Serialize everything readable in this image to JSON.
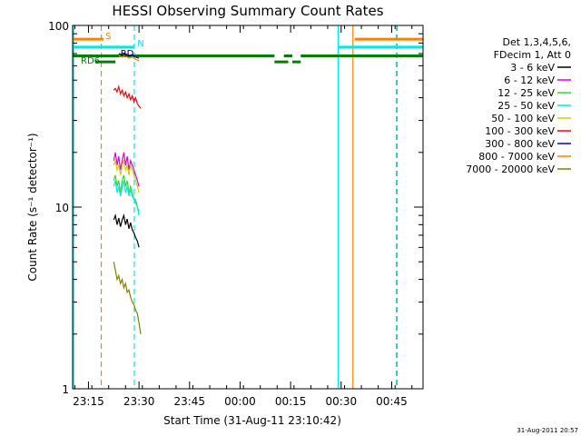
{
  "chart_data": {
    "type": "line",
    "title": "HESSI Observing Summary Count Rates",
    "xlabel": "Start Time (31-Aug-11 23:10:42)",
    "ylabel": "Count Rate (s⁻¹ detector⁻¹)",
    "y_scale": "log",
    "ylim": [
      1,
      100
    ],
    "xlim_minutes": [
      -4.7,
      99.3
    ],
    "x_ticks": [
      {
        "label": "23:15",
        "minute": 0
      },
      {
        "label": "23:30",
        "minute": 15
      },
      {
        "label": "23:45",
        "minute": 30
      },
      {
        "label": "00:00",
        "minute": 45
      },
      {
        "label": "00:15",
        "minute": 60
      },
      {
        "label": "00:30",
        "minute": 75
      },
      {
        "label": "00:45",
        "minute": 90
      }
    ],
    "y_ticks": [
      {
        "label": "1",
        "value": 1
      },
      {
        "label": "10",
        "value": 10
      },
      {
        "label": "100",
        "value": 100
      }
    ],
    "legend": {
      "placement": "right",
      "header": [
        "Det 1,3,4,5,6,",
        "FDecim 1, Att 0"
      ],
      "entries": [
        {
          "label": "3 - 6 keV",
          "color": "#000000"
        },
        {
          "label": "6 - 12 keV",
          "color": "#e000e0"
        },
        {
          "label": "12 - 25 keV",
          "color": "#30e030"
        },
        {
          "label": "25 - 50 keV",
          "color": "#00e8e8"
        },
        {
          "label": "50 - 100 keV",
          "color": "#d0d000"
        },
        {
          "label": "100 - 300 keV",
          "color": "#ff0000"
        },
        {
          "label": "300 - 800 keV",
          "color": "#0000e0"
        },
        {
          "label": "800 - 7000 keV",
          "color": "#ff8000"
        },
        {
          "label": "7000 - 20000 keV",
          "color": "#808000"
        }
      ]
    },
    "markers": [
      {
        "label": "S",
        "color": "#ff8000"
      },
      {
        "label": "N",
        "color": "#00e0ff"
      },
      {
        "label": "RD6",
        "color": "#008000"
      },
      {
        "label": "RD",
        "color": "#000000"
      }
    ],
    "series": [
      {
        "color": "#ff0000",
        "x": [
          7.5,
          8,
          8.5,
          9,
          9.5,
          10,
          10.5,
          11,
          11.5,
          12,
          12.5,
          13,
          13.5,
          14,
          14.5,
          15,
          15.5
        ],
        "y": [
          44,
          45,
          43,
          46,
          42,
          44,
          41,
          43,
          40,
          42,
          39,
          41,
          38,
          40,
          37,
          36,
          35
        ]
      },
      {
        "color": "#e000e0",
        "x": [
          7.5,
          8,
          8.5,
          9,
          9.5,
          10,
          10.5,
          11,
          11.5,
          12,
          12.5,
          13,
          13.5,
          14,
          14.5,
          15
        ],
        "y": [
          18,
          20,
          17,
          19,
          16,
          18,
          20,
          17,
          19,
          16,
          18,
          17,
          16,
          15,
          14,
          13
        ]
      },
      {
        "color": "#d0d000",
        "x": [
          7.5,
          8,
          8.5,
          9,
          9.5,
          10,
          10.5,
          11,
          11.5,
          12,
          12.5,
          13,
          13.5,
          14,
          14.5,
          15
        ],
        "y": [
          17,
          18,
          16,
          17,
          15,
          17,
          18,
          16,
          17,
          15,
          17,
          16,
          15,
          14,
          13,
          12
        ]
      },
      {
        "color": "#30e030",
        "x": [
          7.5,
          8,
          8.5,
          9,
          9.5,
          10,
          10.5,
          11,
          11.5,
          12,
          12.5,
          13,
          13.5,
          14,
          14.5,
          15
        ],
        "y": [
          14,
          15,
          13,
          14,
          12,
          14,
          15,
          13,
          14,
          12,
          13,
          12,
          11,
          11,
          10,
          9.5
        ]
      },
      {
        "color": "#00e8e8",
        "x": [
          7.5,
          8,
          8.5,
          9,
          9.5,
          10,
          10.5,
          11,
          11.5,
          12,
          12.5,
          13,
          13.5,
          14,
          14.5,
          15
        ],
        "y": [
          13,
          14,
          12,
          13,
          11.5,
          13,
          14,
          12,
          13,
          11.5,
          12.5,
          11.5,
          11,
          10.5,
          10,
          9
        ]
      },
      {
        "color": "#000000",
        "x": [
          7.5,
          8,
          8.5,
          9,
          9.5,
          10,
          10.5,
          11,
          11.5,
          12,
          12.5,
          13,
          13.5,
          14,
          14.5,
          15
        ],
        "y": [
          8.5,
          9,
          8,
          8.7,
          7.8,
          8.5,
          9,
          8,
          8.6,
          7.6,
          8.2,
          7.5,
          7.2,
          6.8,
          6.5,
          6
        ]
      },
      {
        "color": "#808000",
        "x": [
          7.5,
          8,
          8.5,
          9,
          9.5,
          10,
          10.5,
          11,
          11.5,
          12,
          12.5,
          13,
          13.5,
          14,
          14.5,
          15,
          15.5
        ],
        "y": [
          5,
          4.5,
          4,
          4.2,
          3.8,
          4,
          3.6,
          3.8,
          3.4,
          3.5,
          3.2,
          3,
          2.9,
          2.7,
          2.6,
          2.3,
          2.0
        ]
      },
      {
        "color": "#0000e0",
        "x": [
          9,
          10,
          11,
          12,
          13,
          14,
          15
        ],
        "y": [
          70,
          69,
          70,
          68,
          69,
          67,
          66
        ]
      },
      {
        "color": "#ff8000",
        "x": [
          9,
          10,
          11,
          12,
          13,
          14,
          15
        ],
        "y": [
          68,
          67,
          68,
          66,
          67,
          65,
          64
        ]
      }
    ],
    "state_bars": [
      {
        "color": "#ff8000",
        "y": 84,
        "ranges": [
          [
            -4.7,
            4.5
          ],
          [
            79,
            99.3
          ]
        ]
      },
      {
        "color": "#00e8e8",
        "y": 76,
        "ranges": [
          [
            -4.7,
            13.5
          ],
          [
            74,
            99.3
          ]
        ]
      },
      {
        "color": "#008000",
        "y": 68,
        "ranges": [
          [
            -4.7,
            55.2
          ],
          [
            58,
            60.5
          ],
          [
            63,
            99.3
          ]
        ]
      },
      {
        "color": "#008000",
        "y": 63,
        "ranges": [
          [
            2,
            8
          ],
          [
            55.2,
            59.3
          ],
          [
            60.5,
            63
          ]
        ]
      }
    ],
    "vlines": [
      {
        "minute": -4.4,
        "color": "#00e8e8",
        "dash": false
      },
      {
        "minute": 3.8,
        "color": "#ff8000",
        "dash": true
      },
      {
        "minute": 13.6,
        "color": "#00e8e8",
        "dash": true
      },
      {
        "minute": 74.1,
        "color": "#00e8e8",
        "dash": false
      },
      {
        "minute": 78.5,
        "color": "#ff8000",
        "dash": false
      },
      {
        "minute": 91.4,
        "color": "#00e8e8",
        "dash": true
      },
      {
        "minute": 91.6,
        "color": "#ff8000",
        "dash": true
      }
    ]
  },
  "timestamp": "31-Aug-2011 20:57"
}
